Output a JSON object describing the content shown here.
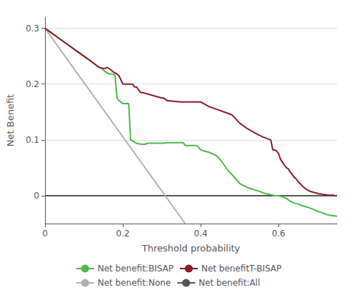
{
  "chart_data": {
    "type": "line",
    "xlabel": "Threshold probability",
    "ylabel": "Net Benefit",
    "xlim": [
      0.0,
      0.75
    ],
    "ylim": [
      -0.05,
      0.32
    ],
    "xticks": [
      0.0,
      0.2,
      0.4,
      0.6
    ],
    "yticks": [
      0.0,
      0.1,
      0.2,
      0.3
    ],
    "grid": true,
    "legend": "bottom",
    "series": [
      {
        "name": "Net benefit:BISAP",
        "color": "#4db848",
        "x": [
          0.0,
          0.02,
          0.04,
          0.06,
          0.08,
          0.1,
          0.12,
          0.135,
          0.14,
          0.145,
          0.15,
          0.155,
          0.16,
          0.165,
          0.17,
          0.175,
          0.18,
          0.185,
          0.19,
          0.195,
          0.2,
          0.205,
          0.21,
          0.215,
          0.22,
          0.225,
          0.23,
          0.235,
          0.24,
          0.25,
          0.255,
          0.26,
          0.265,
          0.27,
          0.28,
          0.29,
          0.3,
          0.305,
          0.31,
          0.32,
          0.33,
          0.34,
          0.35,
          0.355,
          0.36,
          0.365,
          0.37,
          0.38,
          0.39,
          0.4,
          0.41,
          0.42,
          0.43,
          0.44,
          0.45,
          0.46,
          0.47,
          0.48,
          0.49,
          0.5,
          0.51,
          0.52,
          0.53,
          0.54,
          0.55,
          0.56,
          0.57,
          0.58,
          0.585,
          0.59,
          0.595,
          0.6,
          0.61,
          0.62,
          0.63,
          0.64,
          0.65,
          0.66,
          0.67,
          0.68,
          0.69,
          0.7,
          0.71,
          0.72,
          0.73,
          0.74,
          0.75
        ],
        "values": [
          0.3,
          0.29,
          0.28,
          0.27,
          0.26,
          0.25,
          0.24,
          0.232,
          0.23,
          0.228,
          0.225,
          0.222,
          0.22,
          0.218,
          0.218,
          0.218,
          0.215,
          0.175,
          0.17,
          0.168,
          0.165,
          0.165,
          0.165,
          0.165,
          0.1,
          0.098,
          0.096,
          0.094,
          0.093,
          0.092,
          0.092,
          0.093,
          0.094,
          0.094,
          0.094,
          0.094,
          0.094,
          0.094,
          0.095,
          0.095,
          0.095,
          0.095,
          0.095,
          0.095,
          0.09,
          0.09,
          0.09,
          0.09,
          0.09,
          0.082,
          0.08,
          0.078,
          0.075,
          0.072,
          0.065,
          0.055,
          0.045,
          0.038,
          0.03,
          0.022,
          0.018,
          0.015,
          0.012,
          0.01,
          0.008,
          0.005,
          0.003,
          0.002,
          0.001,
          0.0,
          0.0,
          0.0,
          -0.002,
          -0.005,
          -0.01,
          -0.013,
          -0.015,
          -0.018,
          -0.02,
          -0.022,
          -0.025,
          -0.028,
          -0.03,
          -0.033,
          -0.035,
          -0.036,
          -0.037
        ]
      },
      {
        "name": "Net benefitT-BISAP",
        "color": "#8b1a2a",
        "x": [
          0.0,
          0.02,
          0.04,
          0.06,
          0.08,
          0.1,
          0.12,
          0.135,
          0.14,
          0.15,
          0.155,
          0.16,
          0.17,
          0.175,
          0.18,
          0.185,
          0.19,
          0.2,
          0.205,
          0.21,
          0.215,
          0.22,
          0.225,
          0.23,
          0.235,
          0.24,
          0.245,
          0.25,
          0.3,
          0.305,
          0.31,
          0.315,
          0.32,
          0.35,
          0.36,
          0.37,
          0.38,
          0.39,
          0.4,
          0.42,
          0.44,
          0.46,
          0.48,
          0.5,
          0.52,
          0.54,
          0.56,
          0.58,
          0.585,
          0.59,
          0.595,
          0.6,
          0.605,
          0.61,
          0.615,
          0.62,
          0.625,
          0.63,
          0.635,
          0.64,
          0.645,
          0.65,
          0.655,
          0.66,
          0.665,
          0.67,
          0.675,
          0.68,
          0.685,
          0.69,
          0.695,
          0.7,
          0.705,
          0.71,
          0.715,
          0.72,
          0.725,
          0.73,
          0.735,
          0.74,
          0.745,
          0.75
        ],
        "values": [
          0.3,
          0.29,
          0.28,
          0.27,
          0.26,
          0.25,
          0.24,
          0.232,
          0.23,
          0.228,
          0.228,
          0.23,
          0.225,
          0.222,
          0.22,
          0.218,
          0.215,
          0.2,
          0.2,
          0.2,
          0.2,
          0.2,
          0.2,
          0.195,
          0.195,
          0.19,
          0.185,
          0.185,
          0.175,
          0.175,
          0.172,
          0.17,
          0.17,
          0.168,
          0.168,
          0.168,
          0.168,
          0.168,
          0.168,
          0.16,
          0.155,
          0.15,
          0.145,
          0.13,
          0.12,
          0.112,
          0.105,
          0.1,
          0.082,
          0.082,
          0.08,
          0.075,
          0.065,
          0.06,
          0.055,
          0.05,
          0.048,
          0.042,
          0.038,
          0.033,
          0.03,
          0.025,
          0.022,
          0.018,
          0.015,
          0.012,
          0.01,
          0.008,
          0.007,
          0.006,
          0.005,
          0.004,
          0.003,
          0.003,
          0.002,
          0.002,
          0.001,
          0.001,
          0.001,
          0.001,
          0.0,
          0.0
        ]
      },
      {
        "name": "Net benefit:None",
        "color": "#b0b0b0",
        "x": [
          0.0,
          0.36
        ],
        "values": [
          0.3,
          -0.05
        ]
      },
      {
        "name": "Net benefit:All",
        "color": "#555555",
        "x": [
          0.0,
          0.75
        ],
        "values": [
          0.0,
          0.0
        ]
      }
    ]
  }
}
